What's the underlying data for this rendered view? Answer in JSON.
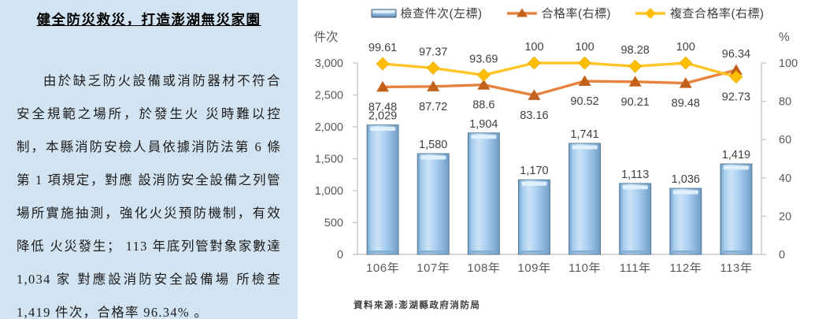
{
  "left_panel": {
    "title": "健全防災救災，打造澎湖無災家園",
    "paragraph": "由於缺乏防火設備或消防器材不符合安全規範之場所，於發生火 災時難以控制，本縣消防安檢人員依據消防法第 6 條第 1 項規定，對應 設消防安全設備之列管場所實施抽測，強化火災預防機制，有效降低 火災發生； 113 年底列管對象家數達 1,034 家 對應設消防安全設備場 所檢查 1,419 件次，合格率 96.34% 。"
  },
  "chart": {
    "source_note": "資料來源:澎湖縣政府消防局"
  },
  "chart_data": {
    "type": "combo-bar-line",
    "categories": [
      "106年",
      "107年",
      "108年",
      "109年",
      "110年",
      "111年",
      "112年",
      "113年"
    ],
    "bar_series": {
      "name": "檢查件次(左標)",
      "axis": "left",
      "values": [
        2029,
        1580,
        1904,
        1170,
        1741,
        1113,
        1036,
        1419
      ],
      "labels": [
        "2,029",
        "1,580",
        "1,904",
        "1,170",
        "1,741",
        "1,113",
        "1,036",
        "1,419"
      ],
      "fill_light": "#cbe3f7",
      "fill_mid": "#a5cbec",
      "fill_dark": "#6f9dc6",
      "edge": "#51748f"
    },
    "line_series": [
      {
        "name": "合格率(右標)",
        "axis": "right",
        "marker": "triangle",
        "line_color": "#e8823e",
        "marker_color": "#c3601a",
        "values": [
          87.48,
          87.72,
          88.6,
          83.16,
          90.52,
          90.21,
          89.48,
          96.34
        ],
        "labels": [
          "87.48",
          "87.72",
          "88.6",
          "83.16",
          "90.52",
          "90.21",
          "89.48",
          "96.34"
        ]
      },
      {
        "name": "複查合格率(右標)",
        "axis": "right",
        "marker": "diamond",
        "line_color": "#ffc425",
        "marker_color": "#ffbf00",
        "values": [
          99.61,
          97.37,
          93.69,
          100,
          100,
          98.28,
          100,
          92.73
        ],
        "labels": [
          "99.61",
          "97.37",
          "93.69",
          "100",
          "100",
          "98.28",
          "100",
          "92.73"
        ]
      }
    ],
    "left_axis": {
      "title": "件次",
      "min": 0,
      "max": 3000,
      "ticks": [
        0,
        500,
        1000,
        1500,
        2000,
        2500,
        3000
      ],
      "tick_labels": [
        "0",
        "500",
        "1,000",
        "1,500",
        "2,000",
        "2,500",
        "3,000"
      ]
    },
    "right_axis": {
      "title": "%",
      "min": 0,
      "max": 100,
      "ticks": [
        0,
        20,
        40,
        60,
        80,
        100
      ],
      "tick_labels": [
        "0",
        "20",
        "40",
        "60",
        "80",
        "100"
      ]
    },
    "legend_position": "top",
    "grid": false,
    "axis_color": "#bfbfbf",
    "tick_label_color": "#595959",
    "data_label_color": "#3f3f3f"
  }
}
